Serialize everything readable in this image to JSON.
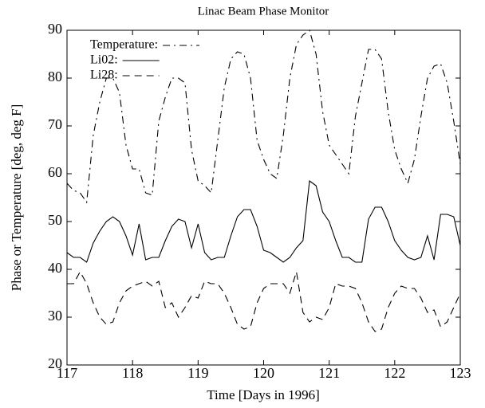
{
  "chart_data": {
    "type": "line",
    "title": "Linac Beam Phase Monitor",
    "xlabel": "Time [Days in 1996]",
    "ylabel": "Phase or Temperature [deg, deg F]",
    "x": [
      117.0,
      117.1,
      117.2,
      117.3,
      117.4,
      117.5,
      117.6,
      117.7,
      117.8,
      117.9,
      118.0,
      118.1,
      118.2,
      118.3,
      118.4,
      118.5,
      118.6,
      118.7,
      118.8,
      118.9,
      119.0,
      119.1,
      119.2,
      119.3,
      119.4,
      119.5,
      119.6,
      119.7,
      119.8,
      119.9,
      120.0,
      120.1,
      120.2,
      120.3,
      120.4,
      120.5,
      120.6,
      120.7,
      120.8,
      120.9,
      121.0,
      121.1,
      121.2,
      121.3,
      121.4,
      121.5,
      121.6,
      121.7,
      121.8,
      121.9,
      122.0,
      122.1,
      122.2,
      122.3,
      122.4,
      122.5,
      122.6,
      122.7,
      122.8,
      122.9,
      123.0
    ],
    "series": [
      {
        "name": "Temperature:",
        "color": "#000000",
        "dash": "dashdot",
        "values": [
          58,
          56.5,
          56,
          54,
          68,
          75,
          80,
          80,
          77,
          66,
          61,
          61,
          56,
          55.5,
          71,
          76,
          80,
          80,
          79,
          65,
          58.5,
          57.5,
          56,
          67,
          78,
          84,
          85.5,
          85,
          80,
          67,
          63,
          60,
          59,
          68,
          80,
          87,
          89,
          90,
          85,
          73,
          66,
          64,
          62,
          60,
          72,
          79,
          86,
          86,
          84,
          73,
          65,
          61,
          58,
          63,
          72,
          80,
          82.5,
          83,
          79,
          71,
          62
        ]
      },
      {
        "name": "Li02:",
        "color": "#000000",
        "dash": "solid",
        "values": [
          43.5,
          42.5,
          42.5,
          41.5,
          45.5,
          48,
          50,
          51,
          50,
          47,
          43,
          49.5,
          42,
          42.5,
          42.5,
          46,
          49,
          50.5,
          50,
          44.5,
          49.5,
          43.5,
          42,
          42.5,
          42.5,
          47,
          51,
          52.5,
          52.5,
          49,
          44,
          43.5,
          42.5,
          41.5,
          42.5,
          44.5,
          46,
          58.5,
          57.5,
          52,
          50,
          46,
          42.5,
          42.5,
          41.5,
          41.5,
          50.5,
          53,
          53,
          50,
          46,
          44,
          42.5,
          42,
          42.5,
          47,
          42,
          51.5,
          51.5,
          51,
          45
        ]
      },
      {
        "name": "Li28:",
        "color": "#000000",
        "dash": "dashed",
        "values": [
          37,
          37,
          39.5,
          37,
          33,
          30,
          28.5,
          29,
          33,
          35.5,
          36.5,
          37,
          37.5,
          36.5,
          37.5,
          32,
          33,
          30,
          32,
          34.5,
          34,
          37.5,
          37,
          37,
          35,
          32,
          28.5,
          27.5,
          28,
          33,
          36,
          37,
          37,
          37,
          35,
          39.5,
          31,
          29,
          30,
          29.5,
          32,
          37,
          36.5,
          36.5,
          36,
          33,
          29,
          27,
          27.5,
          32,
          35,
          36.5,
          36,
          36,
          34,
          31,
          31.5,
          28,
          29,
          32,
          35
        ]
      }
    ],
    "xlim": [
      117,
      123
    ],
    "xticks": [
      117,
      118,
      119,
      120,
      121,
      122,
      123
    ],
    "ylim": [
      20,
      90
    ],
    "yticks": [
      20,
      30,
      40,
      50,
      60,
      70,
      80,
      90
    ],
    "grid": false,
    "legend": "upper left"
  }
}
